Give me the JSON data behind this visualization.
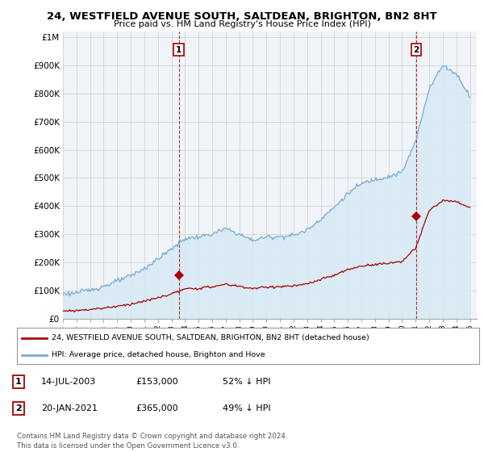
{
  "title": "24, WESTFIELD AVENUE SOUTH, SALTDEAN, BRIGHTON, BN2 8HT",
  "subtitle": "Price paid vs. HM Land Registry's House Price Index (HPI)",
  "hpi_color": "#7aabcf",
  "hpi_fill_color": "#d8eaf5",
  "price_color": "#aa0000",
  "sale1_x": 2003.54,
  "sale1_y": 153000,
  "sale2_x": 2021.05,
  "sale2_y": 365000,
  "legend_line1": "24, WESTFIELD AVENUE SOUTH, SALTDEAN, BRIGHTON, BN2 8HT (detached house)",
  "legend_line2": "HPI: Average price, detached house, Brighton and Hove",
  "table_row1": [
    "1",
    "14-JUL-2003",
    "£153,000",
    "52% ↓ HPI"
  ],
  "table_row2": [
    "2",
    "20-JAN-2021",
    "£365,000",
    "49% ↓ HPI"
  ],
  "footnote": "Contains HM Land Registry data © Crown copyright and database right 2024.\nThis data is licensed under the Open Government Licence v3.0.",
  "xmin": 1995.0,
  "xmax": 2025.5,
  "ymin": 0,
  "ymax": 1000000,
  "yticks": [
    0,
    100000,
    200000,
    300000,
    400000,
    500000,
    600000,
    700000,
    800000,
    900000,
    1000000
  ],
  "ytick_labels": [
    "£0",
    "£100K",
    "£200K",
    "£300K",
    "£400K",
    "£500K",
    "£600K",
    "£700K",
    "£800K",
    "£900K",
    "£1M"
  ],
  "hpi_anchors_x": [
    1995,
    1996,
    1997,
    1998,
    1999,
    2000,
    2001,
    2002,
    2003,
    2004,
    2005,
    2006,
    2007,
    2008,
    2009,
    2010,
    2011,
    2012,
    2013,
    2014,
    2015,
    2016,
    2017,
    2018,
    2019,
    2020,
    2021,
    2022,
    2023,
    2024,
    2025
  ],
  "hpi_anchors_y": [
    88000,
    92000,
    102000,
    115000,
    133000,
    152000,
    178000,
    212000,
    248000,
    285000,
    290000,
    300000,
    320000,
    300000,
    278000,
    290000,
    292000,
    296000,
    315000,
    355000,
    395000,
    445000,
    480000,
    495000,
    505000,
    520000,
    630000,
    820000,
    900000,
    870000,
    790000
  ],
  "price_anchors_x": [
    1995,
    1996,
    1997,
    1998,
    1999,
    2000,
    2001,
    2002,
    2003,
    2004,
    2005,
    2006,
    2007,
    2008,
    2009,
    2010,
    2011,
    2012,
    2013,
    2014,
    2015,
    2016,
    2017,
    2018,
    2019,
    2020,
    2021,
    2022,
    2023,
    2024,
    2025
  ],
  "price_anchors_y": [
    27000,
    29000,
    33000,
    38000,
    44000,
    52000,
    62000,
    74000,
    88000,
    105000,
    108000,
    113000,
    122000,
    115000,
    107000,
    112000,
    114000,
    116000,
    123000,
    139000,
    154000,
    174000,
    187000,
    193000,
    197000,
    204000,
    250000,
    385000,
    420000,
    415000,
    395000
  ]
}
